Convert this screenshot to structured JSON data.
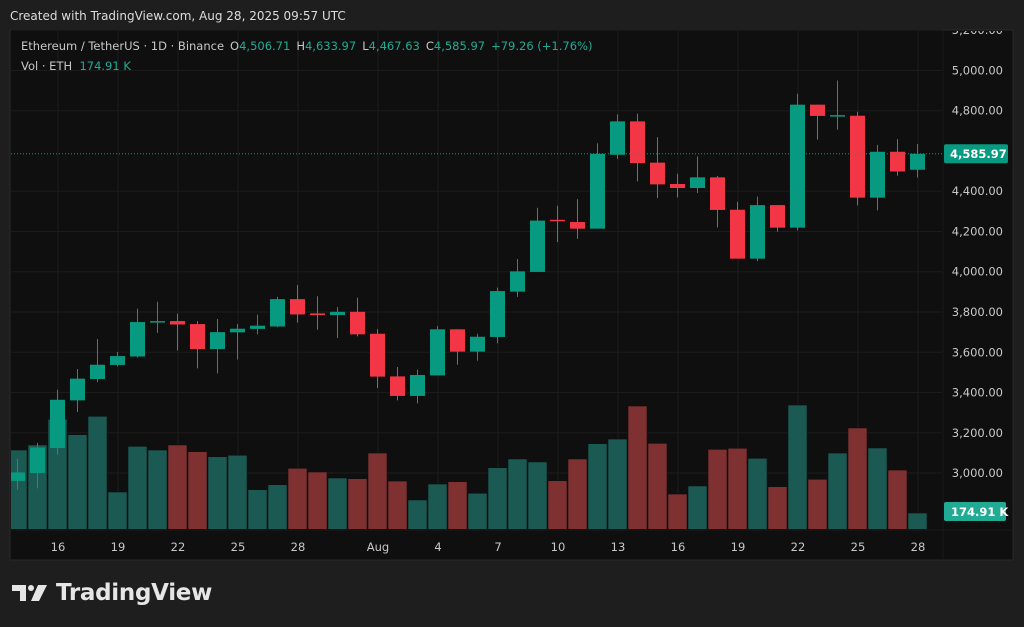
{
  "watermark": "Created with TradingView.com, Aug 28, 2025 09:57 UTC",
  "legend": {
    "symbol": "Ethereum / TetherUS · 1D · Binance",
    "open_label": "O",
    "open": "4,506.71",
    "high_label": "H",
    "high": "4,633.97",
    "low_label": "L",
    "low": "4,467.63",
    "close_label": "C",
    "close": "4,585.97",
    "change": "+79.26 (+1.76%)",
    "volume_label": "Vol · ETH",
    "volume": "174.91 K"
  },
  "price_axis": {
    "ticks": [
      "3,000.00",
      "3,200.00",
      "3,400.00",
      "3,600.00",
      "3,800.00",
      "4,000.00",
      "4,200.00",
      "4,400.00",
      "4,800.00",
      "5,000.00",
      "5,200.00"
    ],
    "last_price_label": "4,585.97",
    "last_volume_label": "174.91 K"
  },
  "time_axis": {
    "ticks": [
      "16",
      "19",
      "22",
      "25",
      "28",
      "Aug",
      "4",
      "7",
      "10",
      "13",
      "16",
      "19",
      "22",
      "25",
      "28"
    ]
  },
  "brand": "TradingView",
  "colors": {
    "up": "#089981",
    "down": "#f23645",
    "vol_up": "#1b5a53",
    "vol_down": "#7f3031",
    "background": "#0f0f0f",
    "frame": "#1e1e1e"
  },
  "chart_data": {
    "type": "candlestick",
    "dates": [
      "Jul 14",
      "Jul 15",
      "Jul 16",
      "Jul 17",
      "Jul 18",
      "Jul 19",
      "Jul 20",
      "Jul 21",
      "Jul 22",
      "Jul 23",
      "Jul 24",
      "Jul 25",
      "Jul 26",
      "Jul 27",
      "Jul 28",
      "Jul 29",
      "Jul 30",
      "Jul 31",
      "Aug 1",
      "Aug 2",
      "Aug 3",
      "Aug 4",
      "Aug 5",
      "Aug 6",
      "Aug 7",
      "Aug 8",
      "Aug 9",
      "Aug 10",
      "Aug 11",
      "Aug 12",
      "Aug 13",
      "Aug 14",
      "Aug 15",
      "Aug 16",
      "Aug 17",
      "Aug 18",
      "Aug 19",
      "Aug 20",
      "Aug 21",
      "Aug 22",
      "Aug 23",
      "Aug 24",
      "Aug 25",
      "Aug 26",
      "Aug 27",
      "Aug 28"
    ],
    "ohlc": [
      [
        2961,
        3071,
        2917,
        3003
      ],
      [
        3000,
        3150,
        2924,
        3127
      ],
      [
        3124,
        3414,
        3091,
        3364
      ],
      [
        3361,
        3517,
        3303,
        3469
      ],
      [
        3467,
        3666,
        3452,
        3538
      ],
      [
        3537,
        3601,
        3530,
        3581
      ],
      [
        3579,
        3816,
        3574,
        3750
      ],
      [
        3748,
        3851,
        3696,
        3755
      ],
      [
        3755,
        3792,
        3609,
        3738
      ],
      [
        3740,
        3755,
        3520,
        3616
      ],
      [
        3616,
        3765,
        3495,
        3700
      ],
      [
        3699,
        3740,
        3564,
        3717
      ],
      [
        3716,
        3787,
        3689,
        3732
      ],
      [
        3728,
        3876,
        3725,
        3864
      ],
      [
        3864,
        3934,
        3748,
        3788
      ],
      [
        3793,
        3878,
        3712,
        3785
      ],
      [
        3785,
        3825,
        3671,
        3801
      ],
      [
        3801,
        3871,
        3679,
        3689
      ],
      [
        3692,
        3715,
        3422,
        3479
      ],
      [
        3480,
        3527,
        3361,
        3383
      ],
      [
        3383,
        3513,
        3346,
        3487
      ],
      [
        3485,
        3730,
        3485,
        3714
      ],
      [
        3714,
        3714,
        3538,
        3603
      ],
      [
        3603,
        3692,
        3558,
        3677
      ],
      [
        3676,
        3921,
        3644,
        3904
      ],
      [
        3901,
        4063,
        3875,
        4002
      ],
      [
        3999,
        4318,
        3999,
        4254
      ],
      [
        4258,
        4328,
        4148,
        4252
      ],
      [
        4247,
        4361,
        4163,
        4214
      ],
      [
        4214,
        4638,
        4214,
        4586
      ],
      [
        4581,
        4782,
        4560,
        4747
      ],
      [
        4747,
        4785,
        4449,
        4540
      ],
      [
        4542,
        4669,
        4366,
        4434
      ],
      [
        4436,
        4487,
        4369,
        4416
      ],
      [
        4416,
        4573,
        4391,
        4469
      ],
      [
        4469,
        4476,
        4220,
        4307
      ],
      [
        4308,
        4348,
        4065,
        4065
      ],
      [
        4065,
        4374,
        4053,
        4331
      ],
      [
        4331,
        4331,
        4199,
        4219
      ],
      [
        4219,
        4884,
        4205,
        4830
      ],
      [
        4830,
        4830,
        4656,
        4774
      ],
      [
        4772,
        4950,
        4706,
        4778
      ],
      [
        4775,
        4795,
        4330,
        4368
      ],
      [
        4368,
        4630,
        4305,
        4596
      ],
      [
        4596,
        4659,
        4477,
        4498
      ],
      [
        4506.71,
        4633.97,
        4467.63,
        4585.97
      ]
    ],
    "volume_k": [
      823,
      875,
      1139,
      981,
      1170,
      391,
      861,
      823,
      875,
      806,
      754,
      769,
      415,
      466,
      635,
      597,
      535,
      528,
      792,
      504,
      309,
      473,
      497,
      378,
      641,
      731,
      700,
      507,
      731,
      888,
      936,
      1276,
      892,
      370,
      453,
      830,
      841,
      738,
      446,
      1286,
      522,
      792,
      1050,
      844,
      617,
      174.91
    ],
    "ylim": [
      2930,
      5200
    ],
    "grid": true
  }
}
